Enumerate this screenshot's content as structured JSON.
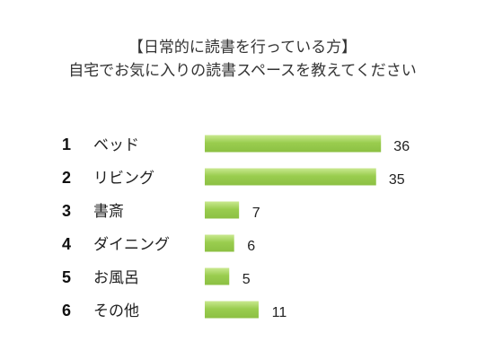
{
  "chart_data": {
    "type": "bar",
    "title": "【日常的に読書を行っている方】",
    "subtitle": "自宅でお気に入りの読書スペースを教えてください",
    "ranks": [
      "1",
      "2",
      "3",
      "4",
      "5",
      "6"
    ],
    "categories": [
      "ベッド",
      "リビング",
      "書斎",
      "ダイニング",
      "お風呂",
      "その他"
    ],
    "values": [
      36,
      35,
      7,
      6,
      5,
      11
    ],
    "bar_color": "#9ACD4F",
    "bar_highlight_color": "#C9E88F",
    "grid": false
  }
}
